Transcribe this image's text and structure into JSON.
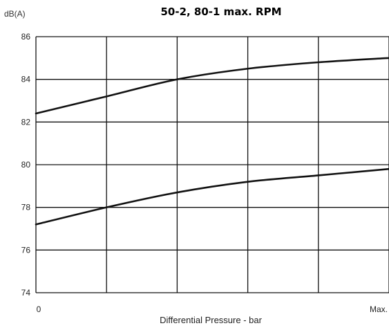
{
  "chart_data": {
    "type": "line",
    "title": "50-2, 80-1 max. RPM",
    "ylabel": "dB(A)",
    "xlabel": "Differential Pressure - bar",
    "x_tick_labels": [
      "0",
      "Max."
    ],
    "x": [
      0,
      0.2,
      0.4,
      0.6,
      0.8,
      1.0
    ],
    "xlim": [
      0,
      1
    ],
    "ylim": [
      74,
      86
    ],
    "y_ticks": [
      74,
      76,
      78,
      80,
      82,
      84,
      86
    ],
    "grid": true,
    "series": [
      {
        "values": [
          82.4,
          83.2,
          84.0,
          84.5,
          84.8,
          85.0
        ]
      },
      {
        "values": [
          77.2,
          78.0,
          78.7,
          79.2,
          79.5,
          79.8
        ]
      }
    ],
    "colors": {
      "line": "#111111",
      "grid": "#111111",
      "background": "#ffffff"
    }
  }
}
